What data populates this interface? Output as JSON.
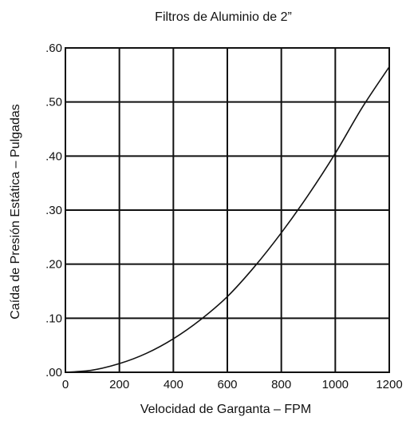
{
  "chart_data": {
    "type": "line",
    "title": "Filtros de Aluminio de 2”",
    "xlabel": "Velocidad de Garganta – FPM",
    "ylabel": "Caída de Presión Estática – Pulgadas",
    "xlim": [
      0,
      1200
    ],
    "ylim": [
      0,
      0.6
    ],
    "x_ticks": [
      0,
      200,
      400,
      600,
      800,
      1000,
      1200
    ],
    "x_tick_labels": [
      "0",
      "200",
      "400",
      "600",
      "800",
      "1000",
      "1200"
    ],
    "y_ticks": [
      0,
      0.1,
      0.2,
      0.3,
      0.4,
      0.5,
      0.6
    ],
    "y_tick_labels": [
      ".00",
      ".10",
      ".20",
      ".30",
      ".40",
      ".50",
      ".60"
    ],
    "grid": true,
    "legend": "none",
    "line_color": "#111111",
    "grid_color": "#111111",
    "series": [
      {
        "x": [
          0,
          100,
          200,
          300,
          400,
          500,
          600,
          700,
          800,
          900,
          1000,
          1100,
          1200
        ],
        "y": [
          0.0,
          0.004,
          0.016,
          0.035,
          0.062,
          0.097,
          0.14,
          0.195,
          0.258,
          0.328,
          0.405,
          0.49,
          0.565
        ]
      }
    ]
  }
}
